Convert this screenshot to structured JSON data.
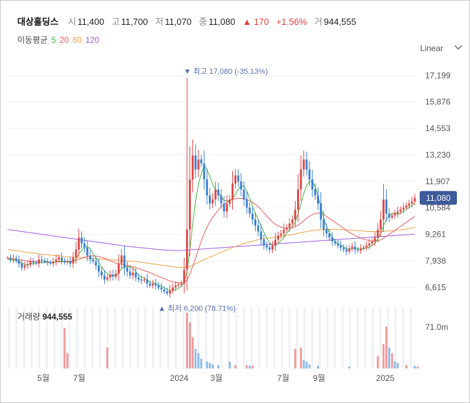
{
  "header": {
    "name": "대상홀딩스",
    "open_label": "시",
    "open": "11,400",
    "high_label": "고",
    "high": "11,700",
    "low_label": "저",
    "low": "11,070",
    "close_label": "종",
    "close": "11,080",
    "change_arrow": "▲",
    "change": "170",
    "change_pct": "+1.56%",
    "volume_label": "거",
    "volume": "944,555",
    "up_color": "#e23b3b"
  },
  "moving_average": {
    "label": "이동평균",
    "periods": [
      {
        "period": "5",
        "color": "#3fb53f"
      },
      {
        "period": "20",
        "color": "#f05a5a"
      },
      {
        "period": "60",
        "color": "#f0a040"
      },
      {
        "period": "120",
        "color": "#a05ae0"
      }
    ]
  },
  "scale_mode": "Linear",
  "chart_data": {
    "type": "candlestick",
    "y_ticks": [
      "17,199",
      "15,876",
      "14,553",
      "13,230",
      "11,907",
      "10,584",
      "9,261",
      "7,938",
      "6,615"
    ],
    "ylim": [
      5900,
      17900
    ],
    "x_ticks": [
      "5월",
      "7월",
      "2024",
      "3월",
      "7월",
      "9월",
      "2025"
    ],
    "current_price": "11,080",
    "max_annotation": "▼ 최고 17,080 (-35.13%)",
    "min_annotation": "▲ 최저 6,200 (78.71%)",
    "max_value": 17080,
    "min_value": 6200,
    "up_color": "#e04848",
    "down_color": "#3a7fd5",
    "close_series": [
      8100,
      8000,
      8050,
      7950,
      7800,
      7600,
      7700,
      7750,
      7900,
      7850,
      7800,
      8000,
      7950,
      7900,
      7850,
      7800,
      7900,
      8000,
      8100,
      7950,
      7850,
      7900,
      7800,
      8100,
      8500,
      9100,
      8800,
      8600,
      8200,
      8000,
      7900,
      7700,
      7400,
      7200,
      7000,
      7100,
      7250,
      7150,
      7300,
      7800,
      8200,
      7600,
      7400,
      7200,
      7350,
      7100,
      7000,
      6950,
      7000,
      6800,
      6700,
      6800,
      6700,
      6600,
      6500,
      6400,
      6300,
      6450,
      6600,
      6700,
      6750,
      6800,
      7500,
      9500,
      12000,
      13200,
      12500,
      13000,
      12800,
      12000,
      11200,
      10800,
      11000,
      11500,
      11200,
      10800,
      10400,
      10800,
      11000,
      11800,
      12200,
      11900,
      11500,
      11000,
      10600,
      10300,
      10000,
      9700,
      9400,
      9000,
      8700,
      8600,
      8500,
      8700,
      9000,
      9200,
      9300,
      9500,
      9600,
      9800,
      10000,
      10500,
      11500,
      12500,
      13000,
      12500,
      12000,
      11500,
      11200,
      10800,
      10000,
      9500,
      9300,
      9100,
      8900,
      8800,
      8700,
      8600,
      8500,
      8400,
      8550,
      8650,
      8500,
      8450,
      8550,
      8600,
      8700,
      8800,
      8900,
      9100,
      9500,
      10000,
      11000,
      10300,
      10100,
      10200,
      10300,
      10400,
      10500,
      10600,
      10700,
      10800,
      10900,
      11080
    ],
    "ma5": [
      8000,
      7980,
      7970,
      7950,
      7900,
      7820,
      7760,
      7740,
      7760,
      7800,
      7820,
      7840,
      7880,
      7900,
      7900,
      7870,
      7850,
      7880,
      7910,
      7920,
      7910,
      7900,
      7880,
      7900,
      8020,
      8280,
      8460,
      8620,
      8640,
      8540,
      8300,
      8080,
      7840,
      7640,
      7440,
      7280,
      7200,
      7180,
      7180,
      7330,
      7540,
      7620,
      7660,
      7640,
      7580,
      7400,
      7220,
      7120,
      7080,
      6970,
      6890,
      6850,
      6800,
      6720,
      6660,
      6600,
      6500,
      6450,
      6450,
      6490,
      6560,
      6660,
      6870,
      7410,
      8470,
      9780,
      10940,
      11740,
      12300,
      12700,
      12500,
      12160,
      11760,
      11500,
      11340,
      11140,
      10940,
      10940,
      10940,
      11060,
      11240,
      11540,
      11680,
      11680,
      11440,
      11060,
      10680,
      10320,
      10000,
      9680,
      9360,
      9080,
      8840,
      8700,
      8700,
      8800,
      8940,
      9100,
      9320,
      9480,
      9640,
      9880,
      10280,
      10780,
      11300,
      11700,
      11900,
      11900,
      11640,
      11200,
      10600,
      10100,
      9660,
      9340,
      9120,
      8920,
      8800,
      8720,
      8620,
      8540,
      8510,
      8540,
      8550,
      8530,
      8530,
      8550,
      8560,
      8620,
      8710,
      8820,
      9020,
      9280,
      9700,
      10000,
      10200,
      10300,
      10320,
      10260,
      10300,
      10400,
      10500,
      10600,
      10700,
      10816
    ],
    "ma20": [
      8050,
      8040,
      8030,
      8010,
      7990,
      7970,
      7950,
      7930,
      7920,
      7910,
      7900,
      7890,
      7880,
      7870,
      7860,
      7860,
      7860,
      7870,
      7880,
      7890,
      7900,
      7910,
      7910,
      7930,
      7960,
      8010,
      8070,
      8120,
      8160,
      8180,
      8190,
      8180,
      8150,
      8110,
      8060,
      8000,
      7940,
      7880,
      7820,
      7790,
      7760,
      7730,
      7710,
      7680,
      7650,
      7600,
      7550,
      7500,
      7450,
      7400,
      7340,
      7280,
      7220,
      7160,
      7100,
      7040,
      6980,
      6930,
      6890,
      6860,
      6840,
      6830,
      6860,
      6980,
      7260,
      7660,
      8080,
      8500,
      8920,
      9300,
      9620,
      9880,
      10100,
      10300,
      10480,
      10640,
      10760,
      10860,
      10940,
      11000,
      11040,
      11060,
      11060,
      11040,
      11000,
      10940,
      10860,
      10760,
      10640,
      10500,
      10340,
      10180,
      10020,
      9880,
      9760,
      9680,
      9620,
      9580,
      9560,
      9560,
      9580,
      9640,
      9720,
      9820,
      9940,
      10060,
      10160,
      10240,
      10300,
      10320,
      10300,
      10240,
      10160,
      10060,
      9960,
      9860,
      9760,
      9660,
      9560,
      9460,
      9360,
      9280,
      9200,
      9140,
      9080,
      9020,
      8980,
      8940,
      8920,
      8920,
      8940,
      8980,
      9060,
      9160,
      9260,
      9360,
      9460,
      9560,
      9660,
      9760,
      9860,
      9960,
      10060,
      10160
    ],
    "ma60": [
      8500,
      8480,
      8460,
      8440,
      8420,
      8400,
      8380,
      8360,
      8340,
      8320,
      8300,
      8285,
      8270,
      8255,
      8240,
      8225,
      8210,
      8195,
      8180,
      8165,
      8150,
      8140,
      8130,
      8120,
      8110,
      8100,
      8090,
      8080,
      8070,
      8060,
      8050,
      8040,
      8030,
      8020,
      8010,
      8000,
      7990,
      7980,
      7970,
      7960,
      7950,
      7940,
      7930,
      7920,
      7910,
      7900,
      7880,
      7860,
      7840,
      7820,
      7800,
      7780,
      7760,
      7740,
      7720,
      7700,
      7680,
      7660,
      7640,
      7620,
      7610,
      7600,
      7600,
      7620,
      7660,
      7720,
      7790,
      7860,
      7930,
      8000,
      8060,
      8120,
      8180,
      8240,
      8300,
      8360,
      8420,
      8480,
      8540,
      8600,
      8650,
      8700,
      8750,
      8800,
      8840,
      8880,
      8920,
      8960,
      8990,
      9020,
      9040,
      9060,
      9080,
      9100,
      9120,
      9140,
      9160,
      9180,
      9200,
      9220,
      9250,
      9280,
      9310,
      9340,
      9370,
      9400,
      9420,
      9440,
      9460,
      9480,
      9490,
      9500,
      9505,
      9510,
      9510,
      9510,
      9505,
      9500,
      9490,
      9480,
      9470,
      9460,
      9450,
      9440,
      9430,
      9420,
      9410,
      9400,
      9395,
      9390,
      9395,
      9400,
      9410,
      9420,
      9430,
      9440,
      9450,
      9460,
      9480,
      9500,
      9520,
      9550,
      9580,
      9610
    ],
    "ma120": [
      9500,
      9480,
      9460,
      9440,
      9420,
      9400,
      9380,
      9360,
      9340,
      9320,
      9300,
      9280,
      9260,
      9240,
      9220,
      9200,
      9180,
      9160,
      9140,
      9120,
      9100,
      9080,
      9060,
      9040,
      9020,
      9000,
      8980,
      8960,
      8940,
      8920,
      8900,
      8880,
      8860,
      8840,
      8820,
      8800,
      8780,
      8760,
      8740,
      8720,
      8700,
      8680,
      8665,
      8650,
      8635,
      8620,
      8605,
      8590,
      8575,
      8560,
      8545,
      8530,
      8515,
      8500,
      8490,
      8480,
      8470,
      8460,
      8455,
      8450,
      8450,
      8455,
      8460,
      8470,
      8480,
      8490,
      8500,
      8510,
      8520,
      8530,
      8540,
      8550,
      8560,
      8570,
      8580,
      8590,
      8600,
      8610,
      8620,
      8630,
      8640,
      8650,
      8660,
      8670,
      8680,
      8690,
      8700,
      8710,
      8720,
      8730,
      8740,
      8750,
      8760,
      8770,
      8780,
      8790,
      8800,
      8810,
      8820,
      8830,
      8840,
      8850,
      8860,
      8870,
      8880,
      8890,
      8900,
      8910,
      8920,
      8930,
      8940,
      8950,
      8960,
      8970,
      8980,
      8990,
      9000,
      9010,
      9020,
      9030,
      9040,
      9050,
      9060,
      9070,
      9080,
      9090,
      9100,
      9110,
      9120,
      9130,
      9140,
      9150,
      9160,
      9170,
      9180,
      9190,
      9200,
      9210,
      9220,
      9230,
      9240,
      9250,
      9260,
      9270
    ],
    "volume_panel": {
      "label": "거래량",
      "value": "944,555",
      "y_tick": "71.0m",
      "ylim": [
        0,
        80
      ],
      "spikes": [
        [
          20,
          58,
          "up"
        ],
        [
          21,
          22,
          "up"
        ],
        [
          35,
          30,
          "up"
        ],
        [
          63,
          80,
          "up"
        ],
        [
          64,
          66,
          "up"
        ],
        [
          65,
          45,
          "up"
        ],
        [
          66,
          28,
          "down"
        ],
        [
          67,
          22,
          "down"
        ],
        [
          68,
          14,
          "down"
        ],
        [
          70,
          10,
          "down"
        ],
        [
          71,
          8,
          "down"
        ],
        [
          72,
          6,
          "down"
        ],
        [
          74,
          5,
          "down"
        ],
        [
          78,
          10,
          "down"
        ],
        [
          80,
          5,
          "up"
        ],
        [
          84,
          5,
          "up"
        ],
        [
          85,
          4,
          "down"
        ],
        [
          86,
          4,
          "up"
        ],
        [
          101,
          28,
          "up"
        ],
        [
          103,
          30,
          "up"
        ],
        [
          104,
          12,
          "down"
        ],
        [
          105,
          10,
          "down"
        ],
        [
          106,
          6,
          "down"
        ],
        [
          109,
          4,
          "down"
        ],
        [
          120,
          3,
          "down"
        ],
        [
          130,
          18,
          "up"
        ],
        [
          132,
          35,
          "up"
        ],
        [
          133,
          60,
          "up"
        ],
        [
          134,
          30,
          "down"
        ],
        [
          135,
          22,
          "up"
        ],
        [
          136,
          10,
          "down"
        ],
        [
          137,
          8,
          "down"
        ],
        [
          140,
          5,
          "up"
        ],
        [
          143,
          4,
          "down"
        ],
        [
          144,
          3,
          "up"
        ]
      ]
    }
  }
}
